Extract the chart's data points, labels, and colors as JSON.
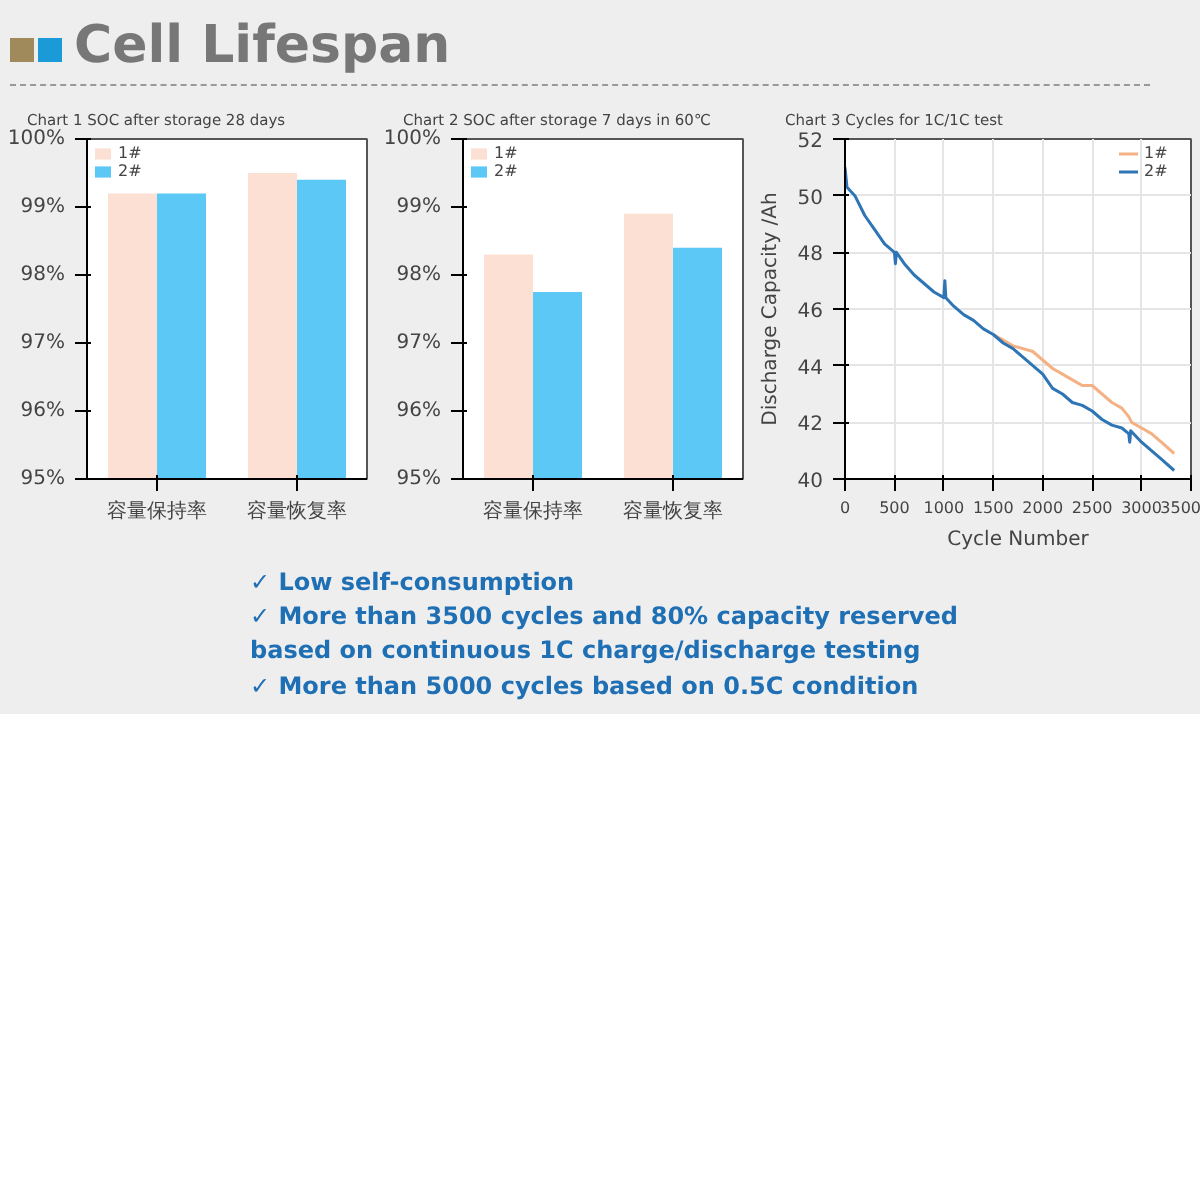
{
  "chart_data": [
    {
      "type": "other",
      "title": "Cell Lifespan"
    },
    {
      "type": "bar",
      "title": "Chart 1 SOC after storage 28 days",
      "categories": [
        "容量保持率",
        "容量恢复率"
      ],
      "series": [
        {
          "name": "1#",
          "color": "#fbe0d3",
          "values": [
            99.2,
            99.5
          ]
        },
        {
          "name": "2#",
          "color": "#5bc8f5",
          "values": [
            99.2,
            99.4
          ]
        }
      ],
      "ylim": [
        95,
        100
      ],
      "yticks": [
        {
          "value": 95,
          "label": "95%"
        },
        {
          "value": 96,
          "label": "96%"
        },
        {
          "value": 97,
          "label": "97%"
        },
        {
          "value": 98,
          "label": "98%"
        },
        {
          "value": 99,
          "label": "99%"
        },
        {
          "value": 100,
          "label": "100%"
        }
      ],
      "grid": false,
      "legend": "top left"
    },
    {
      "type": "bar",
      "title": "Chart 2 SOC after storage 7 days in 60℃",
      "categories": [
        "容量保持率",
        "容量恢复率"
      ],
      "series": [
        {
          "name": "1#",
          "color": "#fbe0d3",
          "values": [
            98.3,
            98.9
          ]
        },
        {
          "name": "2#",
          "color": "#5bc8f5",
          "values": [
            97.75,
            98.4
          ]
        }
      ],
      "ylim": [
        95,
        100
      ],
      "yticks": [
        {
          "value": 95,
          "label": "95%"
        },
        {
          "value": 96,
          "label": "96%"
        },
        {
          "value": 97,
          "label": "97%"
        },
        {
          "value": 98,
          "label": "98%"
        },
        {
          "value": 99,
          "label": "99%"
        },
        {
          "value": 100,
          "label": "100%"
        }
      ],
      "grid": false,
      "legend": "top left"
    },
    {
      "type": "line",
      "title": "Chart 3 Cycles for 1C/1C test",
      "xlabel": "Cycle Number",
      "ylabel": "Discharge Capacity /Ah",
      "series": [
        {
          "name": "1#",
          "color": "#f4b183",
          "x": [
            1500,
            1600,
            1700,
            1800,
            1900,
            2000,
            2100,
            2200,
            2300,
            2400,
            2500,
            2600,
            2700,
            2800,
            2870,
            2900,
            3000,
            3100,
            3200,
            3330
          ],
          "values": [
            45.1,
            44.9,
            44.7,
            44.6,
            44.5,
            44.2,
            43.9,
            43.7,
            43.5,
            43.3,
            43.3,
            43,
            42.7,
            42.5,
            42.2,
            42,
            41.8,
            41.6,
            41.3,
            40.9
          ]
        },
        {
          "name": "2#",
          "color": "#2e75b6",
          "x": [
            0,
            20,
            100,
            200,
            300,
            400,
            500,
            510,
            520,
            600,
            700,
            800,
            900,
            1000,
            1010,
            1020,
            1100,
            1200,
            1300,
            1400,
            1500,
            1600,
            1700,
            1800,
            1900,
            2000,
            2100,
            2200,
            2300,
            2400,
            2500,
            2600,
            2700,
            2800,
            2870,
            2880,
            2890,
            3000,
            3100,
            3200,
            3330
          ],
          "values": [
            51,
            50.3,
            50,
            49.3,
            48.8,
            48.3,
            48,
            47.6,
            48,
            47.6,
            47.2,
            46.9,
            46.6,
            46.4,
            47,
            46.4,
            46.1,
            45.8,
            45.6,
            45.3,
            45.1,
            44.8,
            44.6,
            44.3,
            44,
            43.7,
            43.2,
            43,
            42.7,
            42.6,
            42.4,
            42.1,
            41.9,
            41.8,
            41.6,
            41.3,
            41.7,
            41.3,
            41,
            40.7,
            40.3
          ]
        }
      ],
      "xlim": [
        0,
        3500
      ],
      "xticks": [
        0,
        500,
        1000,
        1500,
        2000,
        2500,
        3000,
        3500
      ],
      "ylim": [
        40,
        52
      ],
      "yticks": [
        40,
        42,
        44,
        46,
        48,
        50,
        52
      ],
      "grid": true,
      "legend": "top right"
    },
    {
      "type": "other",
      "annotations": [
        "✓ Low self-consumption",
        "✓ More than 3500 cycles and 80% capacity reserved based on continuous 1C  charge/discharge testing",
        "✓ More than 5000 cycles based on 0.5C condition"
      ]
    }
  ]
}
